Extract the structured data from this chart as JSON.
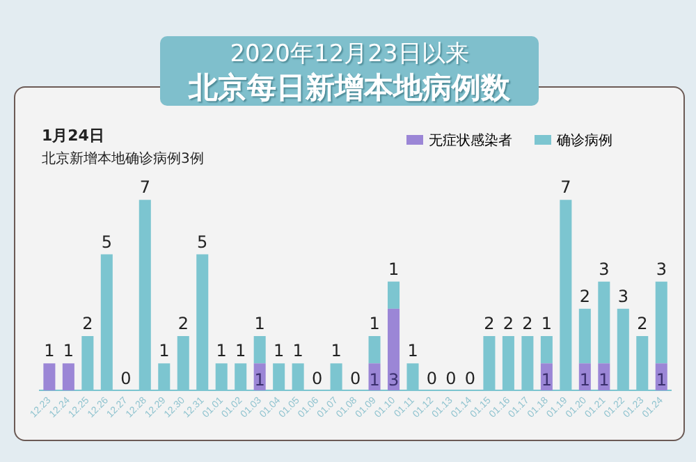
{
  "chart_data": {
    "type": "bar",
    "stacked": true,
    "title": "2020年12月23日以来",
    "subtitle": "北京每日新增本地病例数",
    "annotations": [
      "1月24日",
      "北京新增本地确诊病例3例"
    ],
    "categories": [
      "12.23",
      "12.24",
      "12.25",
      "12.26",
      "12.27",
      "12.28",
      "12.29",
      "12.30",
      "12.31",
      "01.01",
      "01.02",
      "01.03",
      "01.04",
      "01.05",
      "01.06",
      "01.07",
      "01.08",
      "01.09",
      "01.10",
      "01.11",
      "01.12",
      "01.13",
      "01.14",
      "01.15",
      "01.16",
      "01.17",
      "01.18",
      "01.19",
      "01.20",
      "01.21",
      "01.22",
      "01.23",
      "01.24"
    ],
    "series": [
      {
        "name": "无症状感染者",
        "color": "#9b86d6",
        "values": [
          1,
          1,
          0,
          0,
          0,
          0,
          0,
          0,
          0,
          0,
          0,
          1,
          0,
          0,
          0,
          0,
          0,
          1,
          3,
          0,
          0,
          0,
          0,
          0,
          0,
          0,
          1,
          0,
          1,
          1,
          0,
          0,
          1
        ],
        "value_labels": [
          "1",
          "1",
          null,
          null,
          null,
          null,
          null,
          null,
          null,
          null,
          null,
          "1",
          null,
          null,
          null,
          null,
          null,
          "1",
          "3",
          null,
          null,
          null,
          null,
          null,
          null,
          null,
          "1",
          null,
          "1",
          "1",
          null,
          null,
          "1"
        ]
      },
      {
        "name": "确诊病例",
        "color": "#7cc5d0",
        "values": [
          0,
          0,
          2,
          5,
          0,
          7,
          1,
          2,
          5,
          1,
          1,
          1,
          1,
          1,
          0,
          1,
          0,
          1,
          1,
          1,
          0,
          0,
          0,
          2,
          2,
          2,
          1,
          7,
          2,
          3,
          3,
          2,
          3
        ],
        "value_labels": [
          null,
          null,
          "2",
          "5",
          "0",
          "7",
          "1",
          "2",
          "5",
          "1",
          "1",
          "1",
          "1",
          "1",
          "0",
          "1",
          "0",
          "1",
          "1",
          "1",
          "0",
          "0",
          "0",
          "2",
          "2",
          "2",
          "1",
          "7",
          "2",
          "3",
          "3",
          "2",
          "3"
        ]
      }
    ],
    "legend": "top right",
    "tick_labels": "x",
    "grid": false
  }
}
